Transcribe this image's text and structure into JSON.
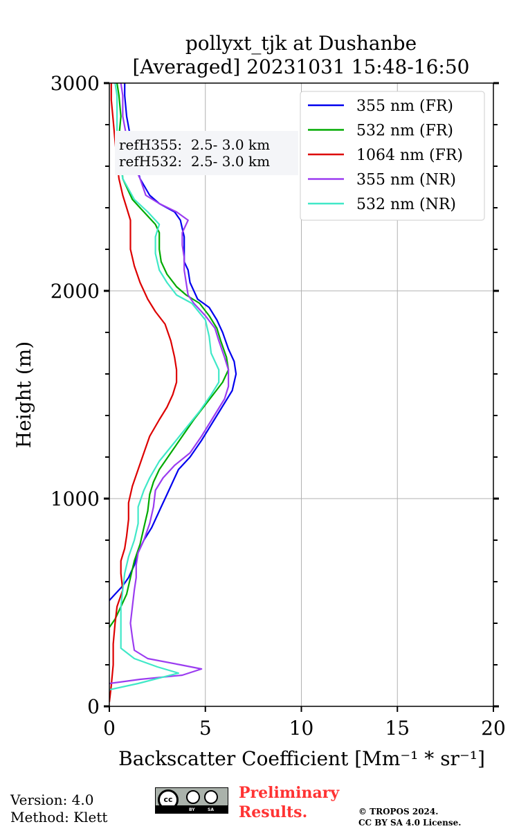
{
  "chart_data": {
    "type": "line",
    "title": "pollyxt_tjk at Dushanbe",
    "subtitle": "[Averaged] 20231031 15:48-16:50",
    "xlabel": "Backscatter Coefficient [Mm⁻¹ * sr⁻¹]",
    "ylabel": "Height (m)",
    "xlim": [
      0,
      20
    ],
    "ylim": [
      0,
      3000
    ],
    "xticks": [
      0,
      5,
      10,
      15,
      20
    ],
    "yticks": [
      0,
      1000,
      2000,
      3000
    ],
    "grid": true,
    "legend_position": "top-right",
    "annotation": [
      "refH355:  2.5- 3.0 km",
      "refH532:  2.5- 3.0 km"
    ],
    "series": [
      {
        "name": "355 nm (FR)",
        "color": "#0000ee",
        "points": [
          [
            -0.1,
            500
          ],
          [
            0.3,
            540
          ],
          [
            0.7,
            580
          ],
          [
            1.0,
            620
          ],
          [
            1.3,
            680
          ],
          [
            1.5,
            740
          ],
          [
            1.8,
            800
          ],
          [
            2.2,
            860
          ],
          [
            2.5,
            920
          ],
          [
            2.7,
            960
          ],
          [
            3.0,
            1020
          ],
          [
            3.3,
            1080
          ],
          [
            3.6,
            1140
          ],
          [
            4.2,
            1200
          ],
          [
            4.8,
            1280
          ],
          [
            5.2,
            1340
          ],
          [
            5.6,
            1400
          ],
          [
            6.0,
            1460
          ],
          [
            6.4,
            1520
          ],
          [
            6.6,
            1600
          ],
          [
            6.5,
            1660
          ],
          [
            6.2,
            1720
          ],
          [
            5.9,
            1800
          ],
          [
            5.6,
            1860
          ],
          [
            5.2,
            1920
          ],
          [
            4.6,
            1960
          ],
          [
            4.4,
            2000
          ],
          [
            4.2,
            2040
          ],
          [
            4.1,
            2100
          ],
          [
            3.9,
            2140
          ],
          [
            3.9,
            2200
          ],
          [
            3.9,
            2260
          ],
          [
            3.8,
            2300
          ],
          [
            3.7,
            2340
          ],
          [
            3.4,
            2380
          ],
          [
            2.6,
            2420
          ],
          [
            2.1,
            2460
          ],
          [
            1.6,
            2540
          ],
          [
            1.3,
            2640
          ],
          [
            1.1,
            2740
          ],
          [
            0.9,
            2840
          ],
          [
            0.8,
            2940
          ],
          [
            0.8,
            3000
          ]
        ]
      },
      {
        "name": "532 nm (FR)",
        "color": "#00aa00",
        "points": [
          [
            0.0,
            380
          ],
          [
            0.3,
            420
          ],
          [
            0.6,
            480
          ],
          [
            0.9,
            540
          ],
          [
            1.1,
            620
          ],
          [
            1.3,
            700
          ],
          [
            1.6,
            780
          ],
          [
            1.8,
            860
          ],
          [
            2.0,
            940
          ],
          [
            2.1,
            1020
          ],
          [
            2.3,
            1080
          ],
          [
            2.6,
            1140
          ],
          [
            3.2,
            1220
          ],
          [
            3.8,
            1300
          ],
          [
            4.4,
            1380
          ],
          [
            4.9,
            1440
          ],
          [
            5.4,
            1500
          ],
          [
            5.9,
            1560
          ],
          [
            6.2,
            1620
          ],
          [
            6.1,
            1680
          ],
          [
            5.8,
            1760
          ],
          [
            5.6,
            1820
          ],
          [
            5.2,
            1880
          ],
          [
            4.7,
            1940
          ],
          [
            4.0,
            1980
          ],
          [
            3.5,
            2020
          ],
          [
            3.0,
            2080
          ],
          [
            2.7,
            2140
          ],
          [
            2.6,
            2200
          ],
          [
            2.6,
            2280
          ],
          [
            2.4,
            2320
          ],
          [
            1.8,
            2380
          ],
          [
            1.2,
            2440
          ],
          [
            0.7,
            2540
          ],
          [
            0.6,
            2640
          ],
          [
            0.5,
            2740
          ],
          [
            0.6,
            2840
          ],
          [
            0.5,
            2940
          ],
          [
            0.4,
            3000
          ]
        ]
      },
      {
        "name": "1064 nm (FR)",
        "color": "#dd0000",
        "points": [
          [
            0.0,
            20
          ],
          [
            0.1,
            100
          ],
          [
            0.2,
            200
          ],
          [
            0.2,
            300
          ],
          [
            0.3,
            400
          ],
          [
            0.4,
            480
          ],
          [
            0.7,
            560
          ],
          [
            0.6,
            640
          ],
          [
            0.6,
            700
          ],
          [
            0.8,
            760
          ],
          [
            0.9,
            820
          ],
          [
            1.0,
            900
          ],
          [
            1.0,
            980
          ],
          [
            1.2,
            1060
          ],
          [
            1.5,
            1140
          ],
          [
            1.8,
            1220
          ],
          [
            2.1,
            1300
          ],
          [
            2.6,
            1380
          ],
          [
            3.0,
            1440
          ],
          [
            3.3,
            1500
          ],
          [
            3.5,
            1560
          ],
          [
            3.5,
            1620
          ],
          [
            3.4,
            1680
          ],
          [
            3.2,
            1760
          ],
          [
            2.9,
            1840
          ],
          [
            2.4,
            1900
          ],
          [
            2.0,
            1960
          ],
          [
            1.6,
            2040
          ],
          [
            1.3,
            2120
          ],
          [
            1.1,
            2200
          ],
          [
            1.1,
            2280
          ],
          [
            1.1,
            2340
          ],
          [
            0.9,
            2400
          ],
          [
            0.7,
            2460
          ],
          [
            0.5,
            2540
          ],
          [
            0.4,
            2620
          ],
          [
            0.3,
            2720
          ],
          [
            0.2,
            2820
          ],
          [
            0.1,
            2920
          ],
          [
            0.1,
            3000
          ]
        ]
      },
      {
        "name": "355 nm (NR)",
        "color": "#9b3cf0",
        "points": [
          [
            0.0,
            110
          ],
          [
            1.6,
            130
          ],
          [
            3.8,
            150
          ],
          [
            4.8,
            180
          ],
          [
            3.7,
            200
          ],
          [
            2.0,
            230
          ],
          [
            1.3,
            270
          ],
          [
            1.2,
            330
          ],
          [
            1.1,
            400
          ],
          [
            1.2,
            480
          ],
          [
            1.3,
            560
          ],
          [
            1.4,
            620
          ],
          [
            1.4,
            680
          ],
          [
            1.5,
            740
          ],
          [
            1.8,
            800
          ],
          [
            2.1,
            880
          ],
          [
            2.3,
            960
          ],
          [
            2.4,
            1040
          ],
          [
            2.8,
            1100
          ],
          [
            3.4,
            1160
          ],
          [
            4.2,
            1220
          ],
          [
            4.8,
            1300
          ],
          [
            5.2,
            1360
          ],
          [
            5.6,
            1420
          ],
          [
            6.0,
            1480
          ],
          [
            6.2,
            1540
          ],
          [
            6.2,
            1620
          ],
          [
            6.0,
            1680
          ],
          [
            5.7,
            1760
          ],
          [
            5.5,
            1820
          ],
          [
            5.0,
            1880
          ],
          [
            4.4,
            1940
          ],
          [
            4.1,
            1980
          ],
          [
            4.0,
            2040
          ],
          [
            3.9,
            2100
          ],
          [
            3.9,
            2160
          ],
          [
            3.8,
            2220
          ],
          [
            3.8,
            2280
          ],
          [
            4.1,
            2340
          ],
          [
            3.5,
            2380
          ],
          [
            2.6,
            2420
          ],
          [
            1.9,
            2460
          ],
          [
            1.6,
            2540
          ],
          [
            1.1,
            2640
          ],
          [
            0.9,
            2740
          ],
          [
            0.7,
            2840
          ],
          [
            0.7,
            2940
          ],
          [
            0.6,
            3000
          ]
        ]
      },
      {
        "name": "532 nm (NR)",
        "color": "#40e8c8",
        "points": [
          [
            0.0,
            80
          ],
          [
            1.5,
            110
          ],
          [
            3.6,
            160
          ],
          [
            2.5,
            190
          ],
          [
            1.3,
            230
          ],
          [
            0.6,
            280
          ],
          [
            0.6,
            340
          ],
          [
            0.6,
            400
          ],
          [
            0.6,
            480
          ],
          [
            0.7,
            560
          ],
          [
            0.8,
            640
          ],
          [
            1.0,
            720
          ],
          [
            1.3,
            800
          ],
          [
            1.5,
            880
          ],
          [
            1.5,
            960
          ],
          [
            1.8,
            1040
          ],
          [
            2.1,
            1100
          ],
          [
            2.6,
            1180
          ],
          [
            3.3,
            1260
          ],
          [
            4.0,
            1340
          ],
          [
            4.7,
            1420
          ],
          [
            5.3,
            1500
          ],
          [
            5.7,
            1560
          ],
          [
            5.7,
            1620
          ],
          [
            5.3,
            1700
          ],
          [
            5.2,
            1780
          ],
          [
            5.0,
            1860
          ],
          [
            4.3,
            1940
          ],
          [
            3.5,
            1980
          ],
          [
            3.0,
            2040
          ],
          [
            2.6,
            2100
          ],
          [
            2.4,
            2180
          ],
          [
            2.4,
            2260
          ],
          [
            2.6,
            2320
          ],
          [
            2.0,
            2380
          ],
          [
            1.3,
            2440
          ],
          [
            0.7,
            2540
          ],
          [
            0.5,
            2640
          ],
          [
            0.4,
            2740
          ],
          [
            0.4,
            2840
          ],
          [
            0.4,
            2940
          ],
          [
            0.3,
            3000
          ]
        ]
      }
    ]
  },
  "footer": {
    "version": "Version: 4.0",
    "method": "Method: Klett",
    "preliminary_line1": "Preliminary",
    "preliminary_line2": "Results.",
    "copyright_line1": "© TROPOS 2024.",
    "copyright_line2": "CC BY SA 4.0 License.",
    "cc_text": "cc",
    "cc_by": "BY",
    "cc_sa": "SA"
  }
}
